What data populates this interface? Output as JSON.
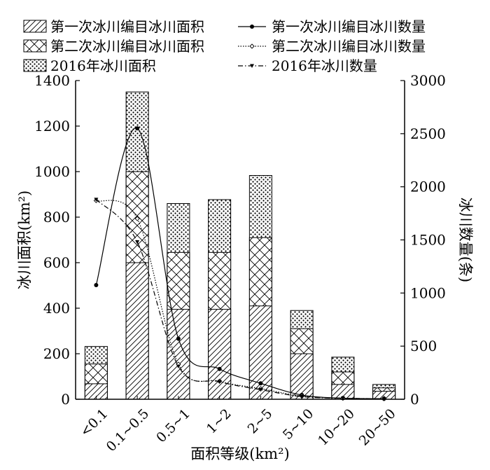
{
  "chart_data": {
    "type": "bar",
    "categories": [
      "<0.1",
      "0.1~0.5",
      "0.5~1",
      "1~2",
      "2~5",
      "5~10",
      "10~20",
      "20~50"
    ],
    "bar_series": [
      {
        "name": "第一次冰川编目冰川面积",
        "pattern": "diagonal-hatch",
        "values": [
          68,
          600,
          395,
          395,
          410,
          200,
          65,
          35
        ]
      },
      {
        "name": "第二次冰川编目冰川面积",
        "pattern": "cross-hatch",
        "values": [
          155,
          1000,
          645,
          645,
          710,
          310,
          120,
          50
        ]
      },
      {
        "name": "2016年冰川面积",
        "pattern": "dots",
        "values": [
          232,
          1350,
          860,
          877,
          983,
          390,
          185,
          65
        ]
      }
    ],
    "line_series": [
      {
        "name": "第一次冰川编目冰川数量",
        "style": "solid-dot",
        "values": [
          1075,
          2550,
          570,
          285,
          150,
          40,
          10,
          5
        ]
      },
      {
        "name": "第二次冰川编目冰川数量",
        "style": "dotted-diamond",
        "values": [
          1870,
          1700,
          330,
          170,
          100,
          30,
          10,
          5
        ]
      },
      {
        "name": "2016年冰川数量",
        "style": "dashdot-triangle",
        "values": [
          1880,
          1480,
          310,
          165,
          90,
          25,
          10,
          5
        ]
      }
    ],
    "xlabel": "面积等级(km²)",
    "ylabel_left": "冰川面积(km²)",
    "ylabel_right": "冰川数量(条)",
    "ylim_left": [
      0,
      1400
    ],
    "ylim_right": [
      0,
      3000
    ],
    "yticks_left": [
      "0",
      "200",
      "400",
      "600",
      "800",
      "1000",
      "1200",
      "1400"
    ],
    "yticks_right": [
      "0",
      "500",
      "1000",
      "1500",
      "2000",
      "2500",
      "3000"
    ],
    "grid": false,
    "legend_position": "top"
  }
}
